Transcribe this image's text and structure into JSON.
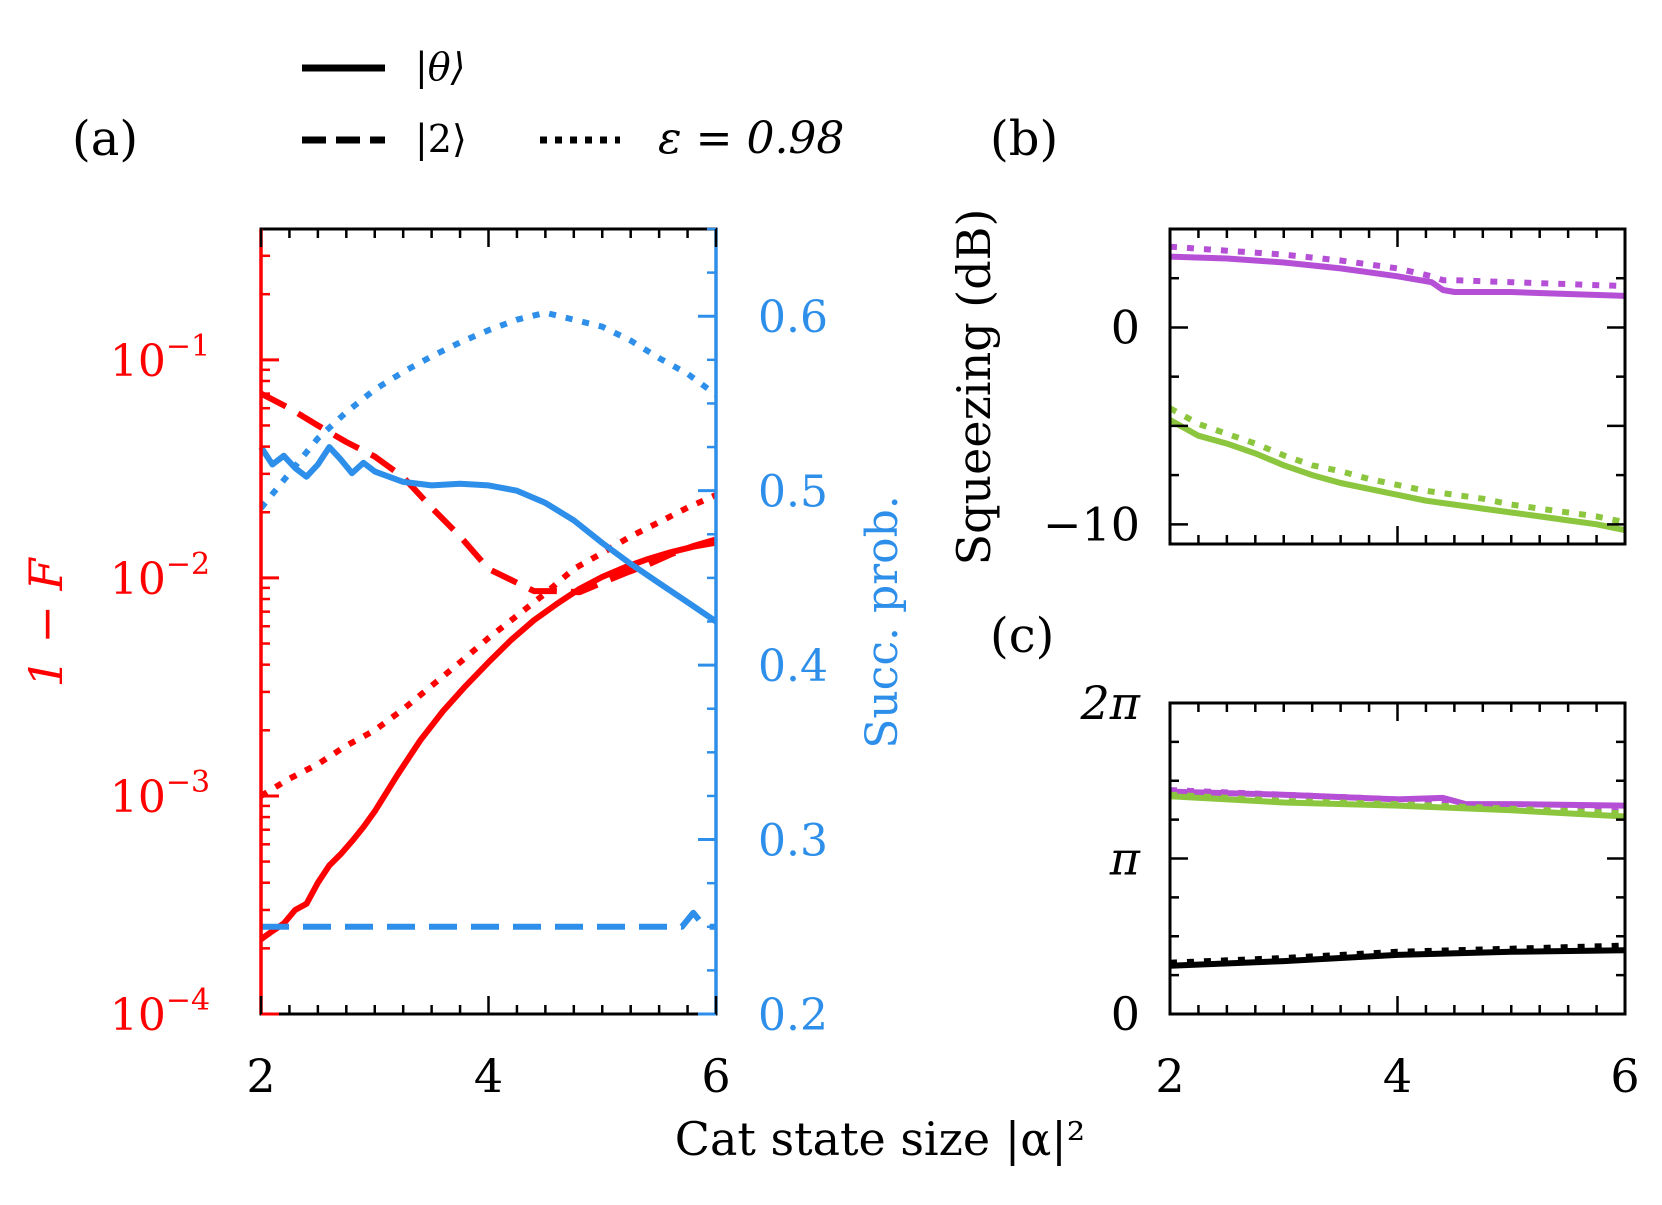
{
  "figure": {
    "xlabel": "Cat state size |α|²",
    "legend": {
      "solid": "|θ⟩",
      "dashed": "|2⟩",
      "dotted": "ε = 0.98"
    },
    "colors": {
      "fidelity": "#ff0000",
      "success": "#2e8fea",
      "purple": "#b550d6",
      "green": "#8cc63f",
      "black": "#000000"
    }
  },
  "chart_data": [
    {
      "panel_label": "(a)",
      "type": "line",
      "xlabel": "Cat state size |α|²",
      "xlim": [
        2,
        6
      ],
      "x_ticks": [
        "2",
        "4",
        "6"
      ],
      "left_axis": {
        "label": "1 − F",
        "scale": "log",
        "ylim_log10": [
          -4,
          -0.4
        ],
        "tick_labels": [
          {
            "exp": -1,
            "text": "10",
            "sup": "−1"
          },
          {
            "exp": -2,
            "text": "10",
            "sup": "−2"
          },
          {
            "exp": -3,
            "text": "10",
            "sup": "−3"
          },
          {
            "exp": -4,
            "text": "10",
            "sup": "−4"
          }
        ]
      },
      "right_axis": {
        "label": "Succ. prob.",
        "ylim": [
          0.2,
          0.65
        ],
        "ticks": [
          0.2,
          0.3,
          0.4,
          0.5,
          0.6
        ],
        "tick_labels": [
          "0.2",
          "0.3",
          "0.4",
          "0.5",
          "0.6"
        ]
      },
      "series": [
        {
          "name": "1−F |θ⟩",
          "axis": "left",
          "style": "solid",
          "x": [
            2.0,
            2.1,
            2.2,
            2.3,
            2.4,
            2.5,
            2.6,
            2.7,
            2.8,
            2.9,
            3.0,
            3.2,
            3.4,
            3.6,
            3.8,
            4.0,
            4.2,
            4.4,
            4.6,
            4.8,
            5.0,
            5.2,
            5.4,
            5.6,
            5.8,
            6.0
          ],
          "y": [
            0.00022,
            0.00024,
            0.00026,
            0.0003,
            0.00032,
            0.0004,
            0.00048,
            0.00054,
            0.00062,
            0.00072,
            0.00085,
            0.00125,
            0.0018,
            0.00245,
            0.0032,
            0.0041,
            0.0052,
            0.0064,
            0.0076,
            0.0089,
            0.0101,
            0.0112,
            0.0122,
            0.0131,
            0.0139,
            0.0145
          ]
        },
        {
          "name": "1−F |2⟩",
          "axis": "left",
          "style": "dashed",
          "x": [
            2.0,
            2.25,
            2.5,
            2.75,
            3.0,
            3.25,
            3.5,
            3.75,
            4.0,
            4.25,
            4.4,
            4.6,
            4.8,
            5.0,
            5.2,
            5.4,
            5.6,
            5.8,
            6.0
          ],
          "y": [
            0.07,
            0.06,
            0.05,
            0.042,
            0.036,
            0.029,
            0.021,
            0.0155,
            0.011,
            0.0095,
            0.0087,
            0.0087,
            0.0086,
            0.0095,
            0.0105,
            0.0115,
            0.0128,
            0.014,
            0.015
          ]
        },
        {
          "name": "1−F ε=0.98",
          "axis": "left",
          "style": "dotted",
          "x": [
            2.0,
            2.25,
            2.5,
            2.75,
            3.0,
            3.25,
            3.5,
            3.75,
            4.0,
            4.25,
            4.5,
            4.75,
            5.0,
            5.25,
            5.5,
            5.75,
            6.0
          ],
          "y": [
            0.001,
            0.0012,
            0.0014,
            0.0017,
            0.002,
            0.0025,
            0.0032,
            0.0041,
            0.0053,
            0.0067,
            0.0085,
            0.011,
            0.013,
            0.0155,
            0.018,
            0.021,
            0.024
          ]
        },
        {
          "name": "Succ. prob. |θ⟩",
          "axis": "right",
          "style": "solid",
          "x": [
            2.0,
            2.1,
            2.2,
            2.3,
            2.4,
            2.5,
            2.6,
            2.7,
            2.8,
            2.9,
            3.0,
            3.25,
            3.5,
            3.75,
            4.0,
            4.25,
            4.5,
            4.75,
            5.0,
            5.25,
            5.5,
            5.75,
            6.0
          ],
          "y": [
            0.525,
            0.515,
            0.52,
            0.513,
            0.508,
            0.515,
            0.525,
            0.518,
            0.51,
            0.516,
            0.511,
            0.505,
            0.503,
            0.504,
            0.503,
            0.5,
            0.493,
            0.483,
            0.47,
            0.458,
            0.447,
            0.436,
            0.425
          ]
        },
        {
          "name": "Succ. prob. |2⟩",
          "axis": "right",
          "style": "dashed",
          "x": [
            2.0,
            3.0,
            4.0,
            5.0,
            5.7,
            5.8,
            5.9,
            6.0
          ],
          "y": [
            0.25,
            0.25,
            0.25,
            0.25,
            0.25,
            0.258,
            0.25,
            0.25
          ]
        },
        {
          "name": "Succ. prob. ε=0.98",
          "axis": "right",
          "style": "dotted",
          "x": [
            2.0,
            2.25,
            2.5,
            2.75,
            3.0,
            3.25,
            3.5,
            3.75,
            4.0,
            4.25,
            4.5,
            4.75,
            5.0,
            5.25,
            5.5,
            5.75,
            6.0
          ],
          "y": [
            0.49,
            0.51,
            0.53,
            0.545,
            0.558,
            0.568,
            0.577,
            0.585,
            0.592,
            0.598,
            0.602,
            0.598,
            0.594,
            0.586,
            0.576,
            0.567,
            0.555
          ]
        }
      ]
    },
    {
      "panel_label": "(b)",
      "type": "line",
      "ylabel": "Squeezing (dB)",
      "xlim": [
        2,
        6
      ],
      "ylim": [
        -11,
        5
      ],
      "y_ticks": [
        0,
        -10
      ],
      "y_tick_labels": [
        "0",
        "−10"
      ],
      "series": [
        {
          "name": "purple solid",
          "color": "purple",
          "style": "solid",
          "x": [
            2.0,
            2.5,
            3.0,
            3.5,
            4.0,
            4.3,
            4.4,
            4.5,
            5.0,
            5.5,
            6.0
          ],
          "y": [
            3.6,
            3.5,
            3.3,
            3.0,
            2.6,
            2.3,
            1.9,
            1.8,
            1.8,
            1.7,
            1.6
          ]
        },
        {
          "name": "purple dotted",
          "color": "purple",
          "style": "dotted",
          "x": [
            2.0,
            2.5,
            3.0,
            3.5,
            4.0,
            4.3,
            4.4,
            4.5,
            5.0,
            5.5,
            6.0
          ],
          "y": [
            4.1,
            3.9,
            3.7,
            3.4,
            3.0,
            2.6,
            2.4,
            2.4,
            2.3,
            2.2,
            2.1
          ]
        },
        {
          "name": "green solid",
          "color": "green",
          "style": "solid",
          "x": [
            2.0,
            2.25,
            2.5,
            2.75,
            3.0,
            3.25,
            3.5,
            3.75,
            4.0,
            4.25,
            4.5,
            4.75,
            5.0,
            5.25,
            5.5,
            5.75,
            6.0
          ],
          "y": [
            -4.7,
            -5.5,
            -5.9,
            -6.4,
            -7.0,
            -7.5,
            -7.9,
            -8.2,
            -8.5,
            -8.8,
            -9.0,
            -9.2,
            -9.4,
            -9.6,
            -9.8,
            -10.0,
            -10.3
          ]
        },
        {
          "name": "green dotted",
          "color": "green",
          "style": "dotted",
          "x": [
            2.0,
            2.25,
            2.5,
            2.75,
            3.0,
            3.25,
            3.5,
            3.75,
            4.0,
            4.25,
            4.5,
            4.75,
            5.0,
            5.25,
            5.5,
            5.75,
            6.0
          ],
          "y": [
            -4.1,
            -4.9,
            -5.4,
            -5.9,
            -6.5,
            -7.0,
            -7.3,
            -7.7,
            -8.0,
            -8.3,
            -8.5,
            -8.7,
            -9.0,
            -9.2,
            -9.4,
            -9.6,
            -9.9
          ]
        }
      ]
    },
    {
      "panel_label": "(c)",
      "type": "line",
      "xlim": [
        2,
        6
      ],
      "x_ticks": [
        "2",
        "4",
        "6"
      ],
      "ylim_over_pi": [
        0,
        2
      ],
      "y_tick_labels": [
        "0",
        "π",
        "2π"
      ],
      "series": [
        {
          "name": "purple solid",
          "color": "purple",
          "style": "solid",
          "x": [
            2.0,
            3.0,
            4.0,
            4.4,
            4.6,
            5.0,
            6.0
          ],
          "y_over_pi": [
            1.43,
            1.41,
            1.38,
            1.39,
            1.35,
            1.35,
            1.34
          ]
        },
        {
          "name": "purple dotted",
          "color": "purple",
          "style": "dotted",
          "x": [
            2.0,
            3.0,
            4.0,
            5.0,
            6.0
          ],
          "y_over_pi": [
            1.44,
            1.41,
            1.38,
            1.33,
            1.3
          ]
        },
        {
          "name": "green solid",
          "color": "green",
          "style": "solid",
          "x": [
            2.0,
            3.0,
            4.0,
            5.0,
            6.0
          ],
          "y_over_pi": [
            1.4,
            1.36,
            1.34,
            1.31,
            1.27
          ]
        },
        {
          "name": "green dotted",
          "color": "green",
          "style": "dotted",
          "x": [
            2.0,
            3.0,
            4.0,
            5.0,
            6.0
          ],
          "y_over_pi": [
            1.41,
            1.37,
            1.35,
            1.32,
            1.29
          ]
        },
        {
          "name": "black solid",
          "color": "black",
          "style": "solid",
          "x": [
            2.0,
            3.0,
            4.0,
            5.0,
            6.0
          ],
          "y_over_pi": [
            0.31,
            0.34,
            0.38,
            0.4,
            0.41
          ]
        },
        {
          "name": "black dotted",
          "color": "black",
          "style": "dotted",
          "x": [
            2.0,
            3.0,
            4.0,
            5.0,
            6.0
          ],
          "y_over_pi": [
            0.33,
            0.36,
            0.4,
            0.42,
            0.44
          ]
        }
      ]
    }
  ]
}
